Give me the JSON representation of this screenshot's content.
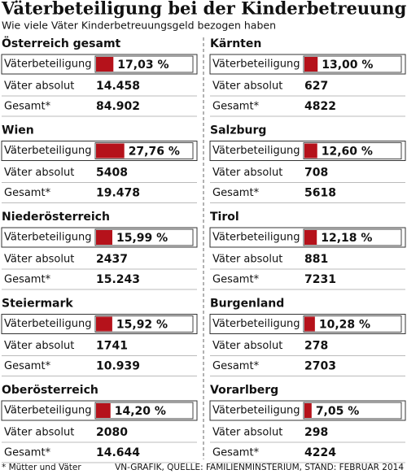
{
  "header": {
    "title": "Väterbeteiligung bei der Kinderbetreuung",
    "subtitle": "Wie viele Väter Kinderbetreuungsgeld bezogen haben"
  },
  "row_labels": [
    "Väterbeteiligung",
    "Väter absolut",
    "Gesamt*"
  ],
  "bar_color": "#b5121b",
  "regions": [
    {
      "name": "Österreich gesamt",
      "color": "#b5121b",
      "share": {
        "value": 17.03,
        "label": "17,03 %"
      },
      "fathers": {
        "value": 14458,
        "label": "14.458"
      },
      "total": {
        "value": 84902,
        "label": "84.902"
      }
    },
    {
      "name": "Wien",
      "color": "#111111",
      "share": {
        "value": 27.76,
        "label": "27,76 %"
      },
      "fathers": 5408,
      "total": {
        "value": 19478,
        "label": "19.478"
      }
    },
    {
      "name": "Niederösterreich",
      "color": "#111111",
      "share": {
        "value": 15.99,
        "label": "15,99 %"
      },
      "fathers": 2437,
      "total": {
        "value": 15243,
        "label": "15.243"
      }
    },
    {
      "name": "Steiermark",
      "color": "#111111",
      "share": {
        "value": 15.92,
        "label": "15,92 %"
      },
      "fathers": 1741,
      "total": {
        "value": 10939,
        "label": "10.939"
      }
    },
    {
      "name": "Oberösterreich",
      "color": "#111111",
      "share": {
        "value": 14.2,
        "label": "14,20 %"
      },
      "fathers": 2080,
      "total": {
        "value": 14644,
        "label": "14.644"
      }
    },
    {
      "name": "Kärnten",
      "color": "#111111",
      "share": {
        "value": 13.0,
        "label": "13,00 %"
      },
      "fathers": 627,
      "total": 4822
    },
    {
      "name": "Salzburg",
      "color": "#111111",
      "share": {
        "value": 12.6,
        "label": "12,60 %"
      },
      "fathers": 708,
      "total": 5618
    },
    {
      "name": "Tirol",
      "color": "#111111",
      "share": {
        "value": 12.18,
        "label": "12,18 %"
      },
      "fathers": 881,
      "total": 7231
    },
    {
      "name": "Burgenland",
      "color": "#111111",
      "share": {
        "value": 10.28,
        "label": "10,28 %"
      },
      "fathers": 278,
      "total": 2703
    },
    {
      "name": "Vorarlberg",
      "color": "#b5121b",
      "share": {
        "value": 7.05,
        "label": "7,05 %"
      },
      "fathers": 298,
      "total": 4224
    }
  ],
  "footer": {
    "note": "* Mütter und Väter",
    "source": "VN-GRAFIK, QUELLE: FAMILIENMINSTERIUM, STAND: FEBRUAR 2014"
  }
}
